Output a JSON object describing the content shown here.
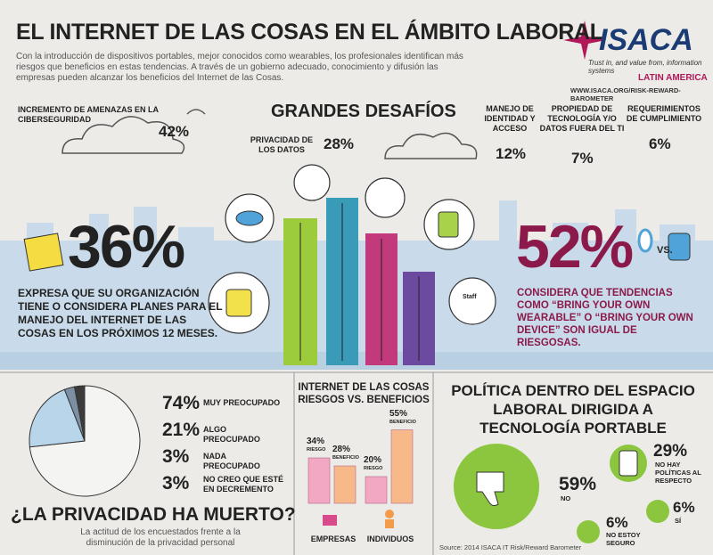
{
  "header": {
    "title": "EL INTERNET DE LAS COSAS EN EL ÁMBITO LABORAL",
    "intro": "Con la introducción de dispositivos portables, mejor conocidos como wearables, los profesionales identifican más riesgos que beneficios en estas tendencias. A través de un gobierno adecuado, conocimiento y difusión las empresas pueden alcanzar los beneficios del Internet de las Cosas.",
    "logo": "ISACA",
    "tagline": "Trust in, and value from, information systems",
    "region": "LATIN AMERICA",
    "url": "WWW.ISACA.ORG/RISK-REWARD-BAROMETER"
  },
  "challenges": {
    "title": "GRANDES DESAFÍOS",
    "items": [
      {
        "label": "INCREMENTO DE AMENAZAS EN LA CIBERSEGURIDAD",
        "value": "42%"
      },
      {
        "label": "PRIVACIDAD DE LOS DATOS",
        "value": "28%"
      },
      {
        "label": "MANEJO DE IDENTIDAD Y ACCESO",
        "value": "12%"
      },
      {
        "label": "PROPIEDAD DE TECNOLOGÍA Y/O DATOS FUERA DEL TI",
        "value": "7%"
      },
      {
        "label": "REQUERIMIENTOS DE CUMPLIMIENTO",
        "value": "6%"
      }
    ]
  },
  "plans": {
    "value": "36%",
    "text": "EXPRESA QUE SU ORGANIZACIÓN TIENE O CONSIDERA PLANES PARA EL MANEJO DEL INTERNET DE LAS COSAS EN LOS PRÓXIMOS 12 MESES."
  },
  "byod": {
    "value": "52%",
    "vs": "VS.",
    "badge": "Staff",
    "text": "CONSIDERA QUE TENDENCIAS COMO “BRING YOUR OWN WEARABLE” O “BRING YOUR OWN DEVICE” SON IGUAL DE RIESGOSAS."
  },
  "privacy": {
    "title": "¿LA PRIVACIDAD HA MUERTO?",
    "caption": "La actitud de los encuestados frente a la disminución de la privacidad personal"
  },
  "chart_data": [
    {
      "type": "pie",
      "categories": [
        "MUY PREOCUPADO",
        "ALGO PREOCUPADO",
        "NADA PREOCUPADO",
        "NO CREO QUE ESTÉ EN DECREMENTO"
      ],
      "values": [
        74,
        21,
        3,
        3
      ],
      "value_labels": [
        "74%",
        "21%",
        "3%",
        "3%"
      ],
      "colors": [
        "#f4f4f2",
        "#b9d5ea",
        "#7d8fa3",
        "#3b3b3b"
      ]
    },
    {
      "type": "bar",
      "title": "INTERNET DE LAS COSAS RIESGOS VS. BENEFICIOS",
      "categories": [
        "EMPRESAS",
        "INDIVIDUOS"
      ],
      "series": [
        {
          "name": "RIESGO",
          "color": "#f2a7c3",
          "values": [
            34,
            20
          ],
          "value_labels": [
            "34%",
            "20%"
          ]
        },
        {
          "name": "BENEFICIO",
          "color": "#f7b98a",
          "values": [
            28,
            55
          ],
          "value_labels": [
            "28%",
            "55%"
          ]
        }
      ]
    }
  ],
  "policy": {
    "title": "POLÍTICA DENTRO DEL ESPACIO LABORAL DIRIGIDA A TECNOLOGÍA PORTABLE",
    "items": [
      {
        "value": "59%",
        "label": "NO"
      },
      {
        "value": "29%",
        "label": "NO HAY POLÍTICAS AL RESPECTO"
      },
      {
        "value": "6%",
        "label": "NO ESTOY SEGURO"
      },
      {
        "value": "6%",
        "label": "SÍ"
      }
    ],
    "source": "Source: 2014 ISACA IT Risk/Reward Barometer"
  }
}
